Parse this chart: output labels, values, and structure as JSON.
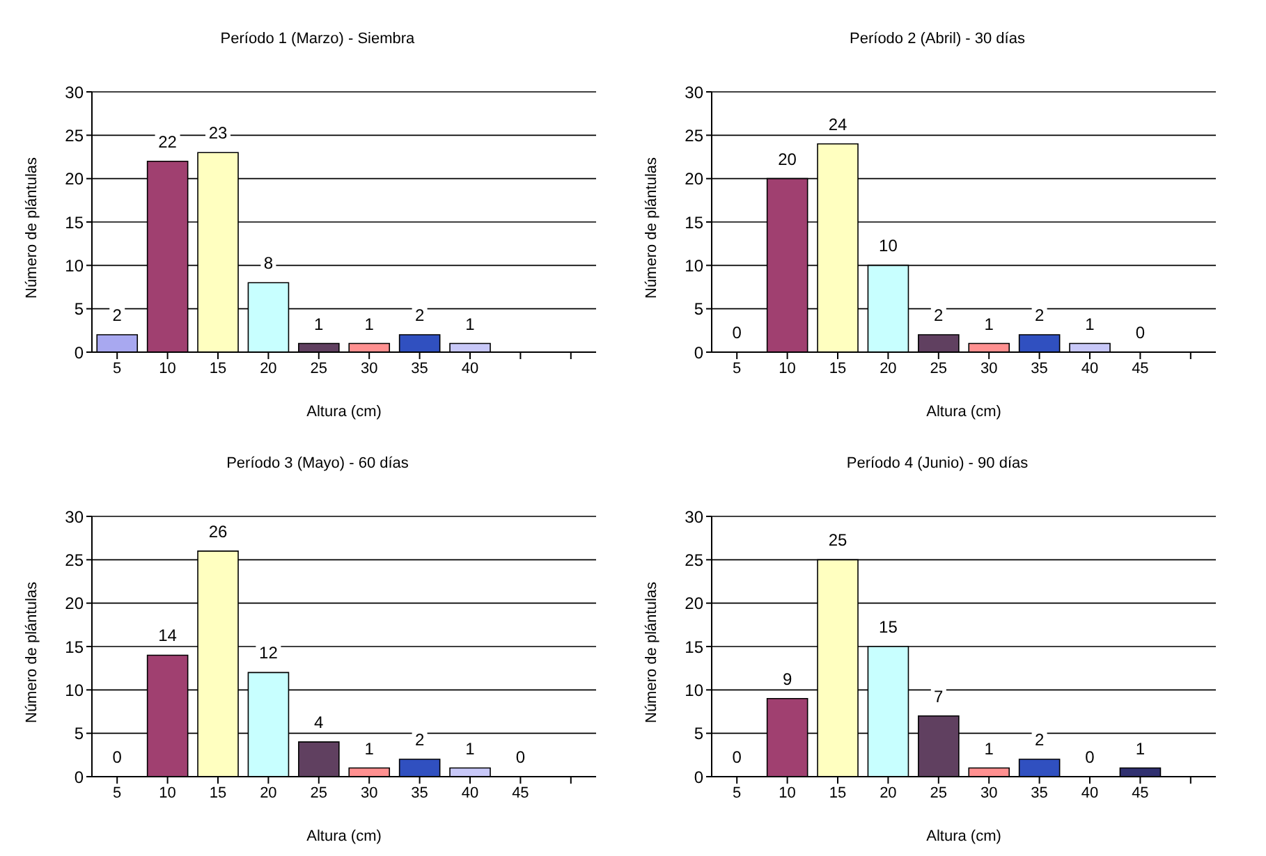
{
  "chart_data": [
    {
      "type": "bar",
      "title": "Período 1 (Marzo) - Siembra",
      "xlabel": "Altura (cm)",
      "ylabel": "Número de plántulas",
      "categories": [
        "5",
        "10",
        "15",
        "20",
        "25",
        "30",
        "35",
        "40",
        null,
        null
      ],
      "values": [
        2,
        22,
        23,
        8,
        1,
        1,
        2,
        1,
        null,
        null
      ],
      "colors": [
        "#a8a8f0",
        "#a04070",
        "#ffffc0",
        "#c8ffff",
        "#604060",
        "#ff9090",
        "#3050c0",
        "#c8c8f8",
        "#ffffff",
        "#ffffff"
      ],
      "ylim": [
        0,
        30
      ],
      "yticks": [
        0,
        5,
        10,
        15,
        20,
        25,
        30
      ],
      "grid": "y",
      "data_labels": true,
      "legend": false
    },
    {
      "type": "bar",
      "title": "Período 2 (Abril) - 30 días",
      "xlabel": "Altura (cm)",
      "ylabel": "Número de plántulas",
      "categories": [
        "5",
        "10",
        "15",
        "20",
        "25",
        "30",
        "35",
        "40",
        "45",
        null
      ],
      "values": [
        0,
        20,
        24,
        10,
        2,
        1,
        2,
        1,
        0,
        null
      ],
      "colors": [
        "#a8a8f0",
        "#a04070",
        "#ffffc0",
        "#c8ffff",
        "#604060",
        "#ff9090",
        "#3050c0",
        "#c8c8f8",
        "#303070",
        "#ffffff"
      ],
      "ylim": [
        0,
        30
      ],
      "yticks": [
        0,
        5,
        10,
        15,
        20,
        25,
        30
      ],
      "grid": "y",
      "data_labels": true,
      "legend": false
    },
    {
      "type": "bar",
      "title": "Período 3 (Mayo) - 60 días",
      "xlabel": "Altura (cm)",
      "ylabel": "Número de plántulas",
      "categories": [
        "5",
        "10",
        "15",
        "20",
        "25",
        "30",
        "35",
        "40",
        "45",
        null
      ],
      "values": [
        0,
        14,
        26,
        12,
        4,
        1,
        2,
        1,
        0,
        null
      ],
      "colors": [
        "#a8a8f0",
        "#a04070",
        "#ffffc0",
        "#c8ffff",
        "#604060",
        "#ff9090",
        "#3050c0",
        "#c8c8f8",
        "#303070",
        "#ffffff"
      ],
      "ylim": [
        0,
        30
      ],
      "yticks": [
        0,
        5,
        10,
        15,
        20,
        25,
        30
      ],
      "grid": "y",
      "data_labels": true,
      "legend": false
    },
    {
      "type": "bar",
      "title": "Período 4 (Junio) - 90 días",
      "xlabel": "Altura (cm)",
      "ylabel": "Número de plántulas",
      "categories": [
        "5",
        "10",
        "15",
        "20",
        "25",
        "30",
        "35",
        "40",
        "45",
        null
      ],
      "values": [
        0,
        9,
        25,
        15,
        7,
        1,
        2,
        0,
        1,
        null
      ],
      "colors": [
        "#a8a8f0",
        "#a04070",
        "#ffffc0",
        "#c8ffff",
        "#604060",
        "#ff9090",
        "#3050c0",
        "#c8c8f8",
        "#303070",
        "#ffffff"
      ],
      "ylim": [
        0,
        30
      ],
      "yticks": [
        0,
        5,
        10,
        15,
        20,
        25,
        30
      ],
      "grid": "y",
      "data_labels": true,
      "legend": false
    }
  ]
}
